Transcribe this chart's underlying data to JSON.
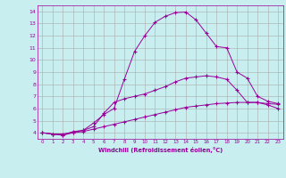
{
  "xlabel": "Windchill (Refroidissement éolien,°C)",
  "background_color": "#c8eef0",
  "line_color": "#990099",
  "grid_color": "#aaaaaa",
  "xlim": [
    -0.5,
    23.5
  ],
  "ylim": [
    3.5,
    14.5
  ],
  "xticks": [
    0,
    1,
    2,
    3,
    4,
    5,
    6,
    7,
    8,
    9,
    10,
    11,
    12,
    13,
    14,
    15,
    16,
    17,
    18,
    19,
    20,
    21,
    22,
    23
  ],
  "yticks": [
    4,
    5,
    6,
    7,
    8,
    9,
    10,
    11,
    12,
    13,
    14
  ],
  "series": [
    {
      "x": [
        0,
        1,
        2,
        3,
        4,
        5,
        6,
        7,
        8,
        9,
        10,
        11,
        12,
        13,
        14,
        15,
        16,
        17,
        18,
        19,
        20,
        21,
        22,
        23
      ],
      "y": [
        4.0,
        3.9,
        3.8,
        4.1,
        4.2,
        4.8,
        5.5,
        6.0,
        8.4,
        10.7,
        12.0,
        13.1,
        13.6,
        13.9,
        13.95,
        13.3,
        12.2,
        11.1,
        11.0,
        9.0,
        8.5,
        7.0,
        6.6,
        6.4
      ]
    },
    {
      "x": [
        0,
        1,
        2,
        3,
        4,
        5,
        6,
        7,
        8,
        9,
        10,
        11,
        12,
        13,
        14,
        15,
        16,
        17,
        18,
        19,
        20,
        21,
        22,
        23
      ],
      "y": [
        4.0,
        3.9,
        3.9,
        4.05,
        4.2,
        4.5,
        5.6,
        6.5,
        6.8,
        7.0,
        7.2,
        7.5,
        7.8,
        8.2,
        8.5,
        8.6,
        8.7,
        8.6,
        8.4,
        7.5,
        6.5,
        6.5,
        6.3,
        6.0
      ]
    },
    {
      "x": [
        0,
        1,
        2,
        3,
        4,
        5,
        6,
        7,
        8,
        9,
        10,
        11,
        12,
        13,
        14,
        15,
        16,
        17,
        18,
        19,
        20,
        21,
        22,
        23
      ],
      "y": [
        4.0,
        3.9,
        3.8,
        4.0,
        4.1,
        4.3,
        4.5,
        4.7,
        4.9,
        5.1,
        5.3,
        5.5,
        5.7,
        5.9,
        6.1,
        6.2,
        6.3,
        6.4,
        6.45,
        6.5,
        6.5,
        6.5,
        6.4,
        6.35
      ]
    }
  ]
}
